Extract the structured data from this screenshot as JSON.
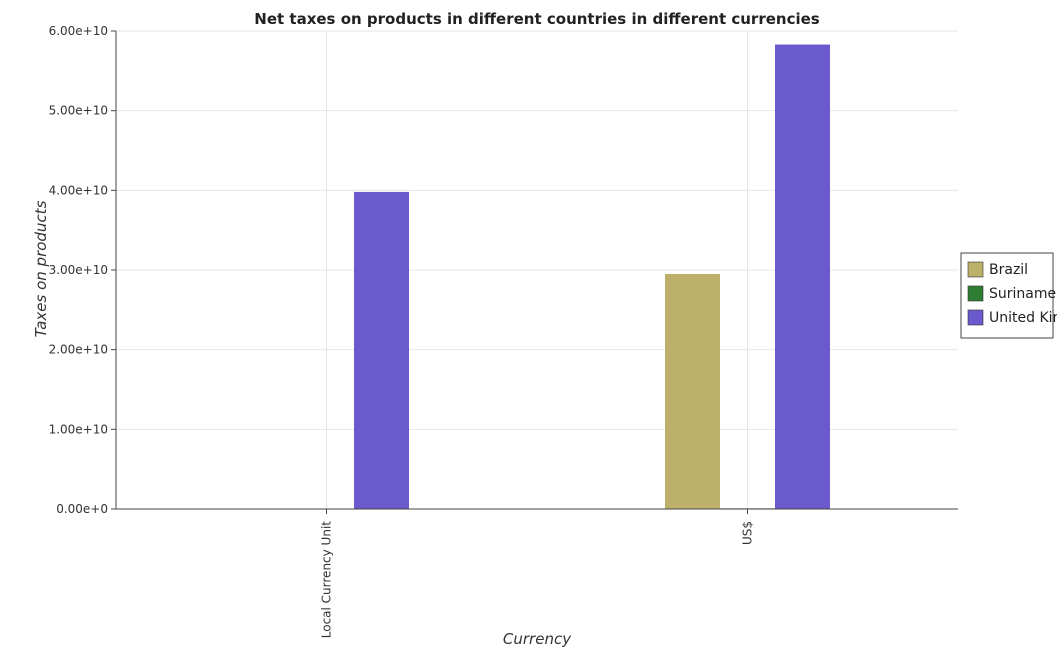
{
  "chart_data": {
    "type": "bar",
    "title": "Net taxes on products in different countries in different currencies",
    "xlabel": "Currency",
    "ylabel": "Taxes on products",
    "categories": [
      "Local Currency Unit",
      "US$"
    ],
    "series": [
      {
        "name": "Brazil",
        "color": "#bcb06a",
        "values": [
          0.8,
          29500000000
        ]
      },
      {
        "name": "Suriname",
        "color": "#2e7d32",
        "values": [
          60000,
          80000000
        ]
      },
      {
        "name": "United Kingdom",
        "color": "#6a5acd",
        "values": [
          39800000000,
          58300000000
        ]
      }
    ],
    "ylim": [
      0,
      60000000000
    ],
    "yticks": [
      0,
      10000000000,
      20000000000,
      30000000000,
      40000000000,
      50000000000,
      60000000000
    ],
    "ytick_labels": [
      "0.00e+0",
      "1.00e+10",
      "2.00e+10",
      "3.00e+10",
      "4.00e+10",
      "5.00e+10",
      "6.00e+10"
    ],
    "grid": true,
    "legend_position": "right"
  }
}
